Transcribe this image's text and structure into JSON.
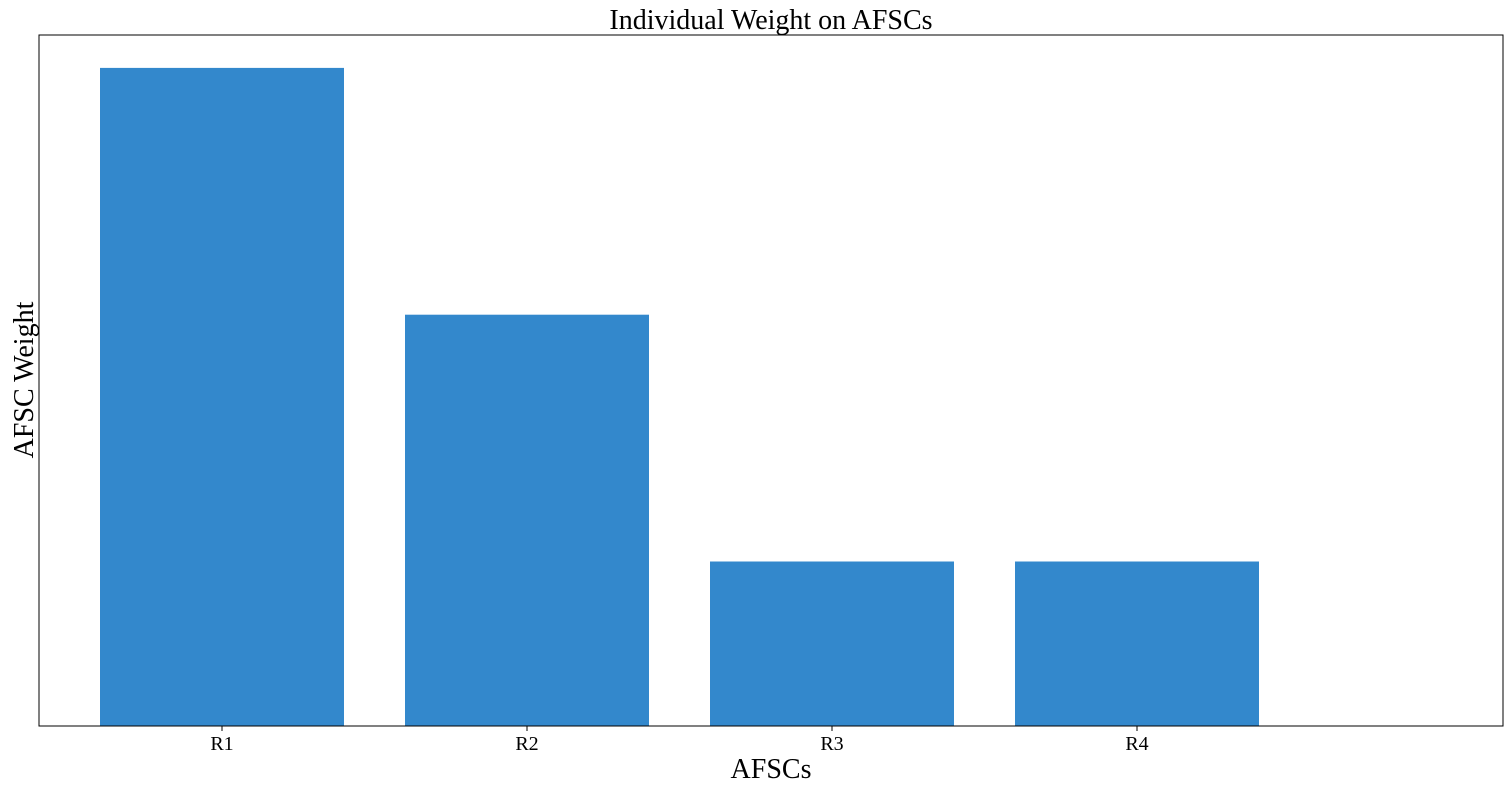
{
  "chart_data": {
    "type": "bar",
    "title": "Individual Weight on AFSCs",
    "xlabel": "AFSCs",
    "ylabel": "AFSC Weight",
    "categories": [
      "R1",
      "R2",
      "R3",
      "R4"
    ],
    "values": [
      1.0,
      0.625,
      0.25,
      0.25
    ],
    "ylim": [
      0,
      1.05
    ],
    "y_ticks_visible": false,
    "grid": false,
    "legend": "none",
    "bar_color": "#3388cc"
  }
}
